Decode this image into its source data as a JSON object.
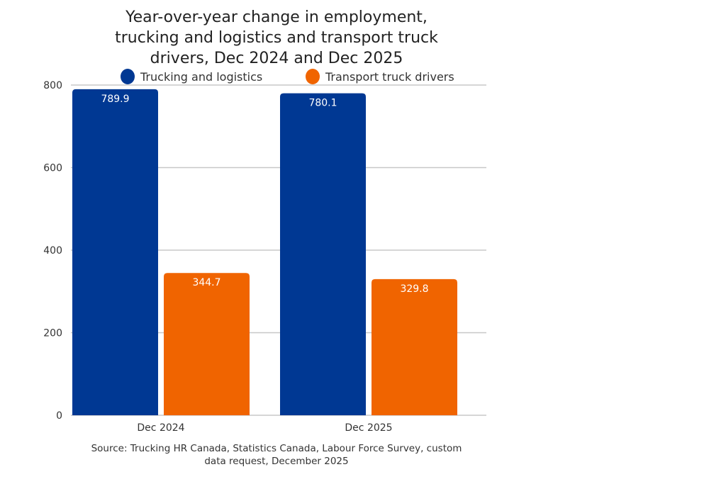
{
  "chart_data": {
    "type": "bar",
    "title": [
      "Year-over-year change in employment,",
      "trucking and logistics and transport truck",
      "drivers, Dec 2024 and Dec 2025"
    ],
    "categories": [
      "Dec 2024",
      "Dec 2025"
    ],
    "series": [
      {
        "name": "Trucking and logistics",
        "values": [
          789.9,
          780.1
        ],
        "labels": [
          "789.9",
          "780.1"
        ],
        "color": "#003893"
      },
      {
        "name": "Transport truck drivers",
        "values": [
          344.7,
          329.8
        ],
        "labels": [
          "344.7",
          "329.8"
        ],
        "color": "#f06400"
      }
    ],
    "ylim": [
      0,
      800
    ],
    "yticks": [
      "0",
      "200",
      "400",
      "600",
      "800"
    ],
    "grid": true,
    "legend": "top",
    "xlabel": "",
    "ylabel": "",
    "source": [
      "Source: Trucking HR Canada, Statistics Canada, Labour Force Survey, custom",
      "data request, December 2025"
    ]
  }
}
